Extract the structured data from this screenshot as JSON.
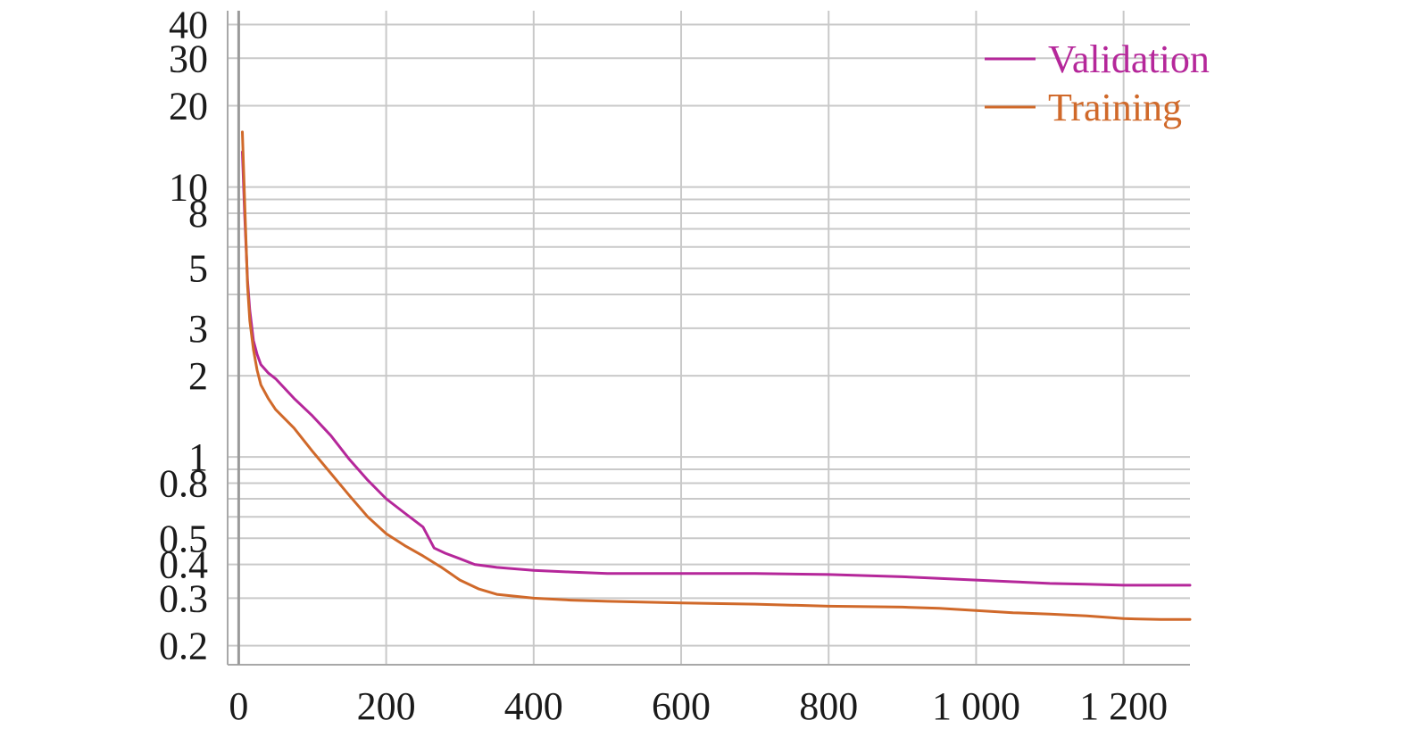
{
  "chart_data": {
    "type": "line",
    "title": "",
    "xlabel": "",
    "ylabel": "",
    "xlim": [
      -15,
      1290
    ],
    "ylim": [
      0.17,
      45
    ],
    "yscale": "log",
    "grid": true,
    "legend_position": "top-right",
    "x_ticks": [
      0,
      200,
      400,
      600,
      800,
      1000,
      1200
    ],
    "x_tick_labels": [
      "0",
      "200",
      "400",
      "600",
      "800",
      "1 000",
      "1 200"
    ],
    "y_ticks": [
      0.2,
      0.3,
      0.4,
      0.5,
      0.8,
      1,
      2,
      3,
      5,
      8,
      10,
      20,
      30,
      40
    ],
    "y_tick_labels": [
      "0.2",
      "0.3",
      "0.4",
      "0.5",
      "0.8",
      "1",
      "2",
      "3",
      "5",
      "8",
      "10",
      "20",
      "30",
      "40"
    ],
    "y_grid": [
      0.2,
      0.3,
      0.4,
      0.5,
      0.6,
      0.7,
      0.8,
      0.9,
      1,
      2,
      3,
      4,
      5,
      6,
      7,
      8,
      9,
      10,
      20,
      30,
      40
    ],
    "series": [
      {
        "name": "Validation",
        "color": "#b5279a",
        "x": [
          5,
          8,
          12,
          15,
          20,
          25,
          30,
          40,
          50,
          75,
          100,
          125,
          150,
          175,
          200,
          225,
          250,
          265,
          280,
          300,
          320,
          350,
          400,
          450,
          500,
          600,
          700,
          800,
          900,
          950,
          1000,
          1050,
          1100,
          1150,
          1200,
          1250,
          1290
        ],
        "y": [
          13.5,
          8.0,
          4.5,
          3.5,
          2.7,
          2.4,
          2.2,
          2.05,
          1.95,
          1.65,
          1.42,
          1.2,
          0.98,
          0.82,
          0.7,
          0.62,
          0.55,
          0.46,
          0.44,
          0.42,
          0.4,
          0.39,
          0.38,
          0.375,
          0.37,
          0.37,
          0.37,
          0.367,
          0.36,
          0.355,
          0.35,
          0.345,
          0.34,
          0.338,
          0.335,
          0.335,
          0.335
        ]
      },
      {
        "name": "Training",
        "color": "#d0692a",
        "x": [
          5,
          8,
          12,
          15,
          20,
          25,
          30,
          40,
          50,
          75,
          100,
          125,
          150,
          175,
          200,
          225,
          250,
          275,
          300,
          325,
          350,
          400,
          450,
          500,
          600,
          700,
          800,
          900,
          950,
          1000,
          1050,
          1100,
          1150,
          1200,
          1250,
          1290
        ],
        "y": [
          16.0,
          9.0,
          4.3,
          3.2,
          2.5,
          2.1,
          1.85,
          1.65,
          1.5,
          1.28,
          1.05,
          0.87,
          0.72,
          0.6,
          0.52,
          0.47,
          0.43,
          0.39,
          0.35,
          0.325,
          0.31,
          0.3,
          0.295,
          0.292,
          0.288,
          0.285,
          0.28,
          0.278,
          0.275,
          0.27,
          0.265,
          0.262,
          0.258,
          0.252,
          0.25,
          0.25
        ]
      }
    ]
  }
}
